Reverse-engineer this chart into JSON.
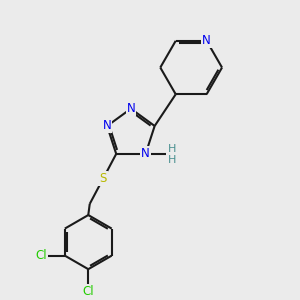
{
  "background_color": "#ebebeb",
  "bond_color": "#1a1a1a",
  "bond_width": 1.5,
  "atom_colors": {
    "N": "#0000ee",
    "S": "#b8b800",
    "Cl": "#22cc00",
    "C": "#1a1a1a",
    "H": "#4a9090"
  },
  "font_size_atom": 8.5,
  "dbo": 0.055
}
